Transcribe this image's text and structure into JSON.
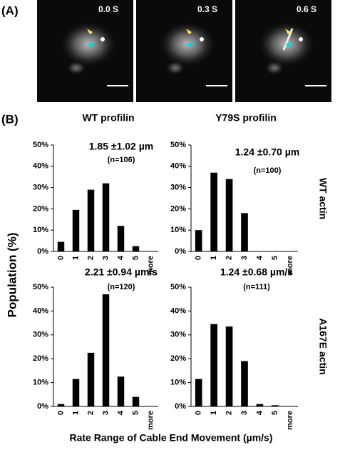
{
  "panel_a": {
    "label": "(A)",
    "timestamps": [
      "0.0 S",
      "0.3 S",
      "0.6 S"
    ]
  },
  "panel_b": {
    "label": "(B)",
    "column_titles": [
      "WT profilin",
      "Y79S profilin"
    ],
    "row_titles": [
      "WT actin",
      "A167E actin"
    ],
    "y_axis_label": "Population (%)",
    "x_axis_label": "Rate Range of Cable End Movement (µm/s)"
  },
  "chart_data": [
    {
      "type": "bar",
      "annotations": [
        "1.85 ±1.02 µm",
        "(n=106)"
      ],
      "categories": [
        "0",
        "1",
        "2",
        "3",
        "4",
        "5",
        "more"
      ],
      "values": [
        4.5,
        19.5,
        29,
        32,
        12,
        2.5,
        0
      ],
      "color": "#000000",
      "ylim": [
        0,
        50
      ],
      "yticks": [
        {
          "value": 0,
          "label": "0%"
        },
        {
          "value": 10,
          "label": "10%"
        },
        {
          "value": 20,
          "label": "20%"
        },
        {
          "value": 30,
          "label": "30%"
        },
        {
          "value": 40,
          "label": "40%"
        },
        {
          "value": 50,
          "label": "50%"
        }
      ]
    },
    {
      "type": "bar",
      "annotations": [
        "1.24 ±0.70 µm",
        "(n=100)"
      ],
      "categories": [
        "0",
        "1",
        "2",
        "3",
        "4",
        "5",
        "more"
      ],
      "values": [
        10,
        37,
        34,
        18,
        0,
        0,
        0
      ],
      "color": "#000000",
      "ylim": [
        0,
        50
      ],
      "yticks": [
        {
          "value": 0,
          "label": "0%"
        },
        {
          "value": 10,
          "label": "10%"
        },
        {
          "value": 20,
          "label": "20%"
        },
        {
          "value": 30,
          "label": "30%"
        },
        {
          "value": 40,
          "label": "40%"
        },
        {
          "value": 50,
          "label": "50%"
        }
      ]
    },
    {
      "type": "bar",
      "annotations": [
        "2.21 ±0.94 µm/s",
        "(n=120)"
      ],
      "categories": [
        "0",
        "1",
        "2",
        "3",
        "4",
        "5",
        "more"
      ],
      "values": [
        1,
        11.5,
        22.5,
        47,
        12.5,
        4,
        0
      ],
      "color": "#000000",
      "ylim": [
        0,
        50
      ],
      "yticks": [
        {
          "value": 0,
          "label": "0%"
        },
        {
          "value": 10,
          "label": "10%"
        },
        {
          "value": 20,
          "label": "20%"
        },
        {
          "value": 30,
          "label": "30%"
        },
        {
          "value": 40,
          "label": "40%"
        },
        {
          "value": 50,
          "label": "50%"
        }
      ]
    },
    {
      "type": "bar",
      "annotations": [
        "1.24 ±0.68 µm/s",
        "(n=111)"
      ],
      "categories": [
        "0",
        "1",
        "2",
        "3",
        "4",
        "5",
        "more"
      ],
      "values": [
        11.5,
        34.5,
        33.5,
        19,
        1,
        0.5,
        0
      ],
      "color": "#000000",
      "ylim": [
        0,
        50
      ],
      "yticks": [
        {
          "value": 0,
          "label": "0%"
        },
        {
          "value": 10,
          "label": "10%"
        },
        {
          "value": 20,
          "label": "20%"
        },
        {
          "value": 30,
          "label": "30%"
        },
        {
          "value": 40,
          "label": "40%"
        },
        {
          "value": 50,
          "label": "50%"
        }
      ]
    }
  ]
}
